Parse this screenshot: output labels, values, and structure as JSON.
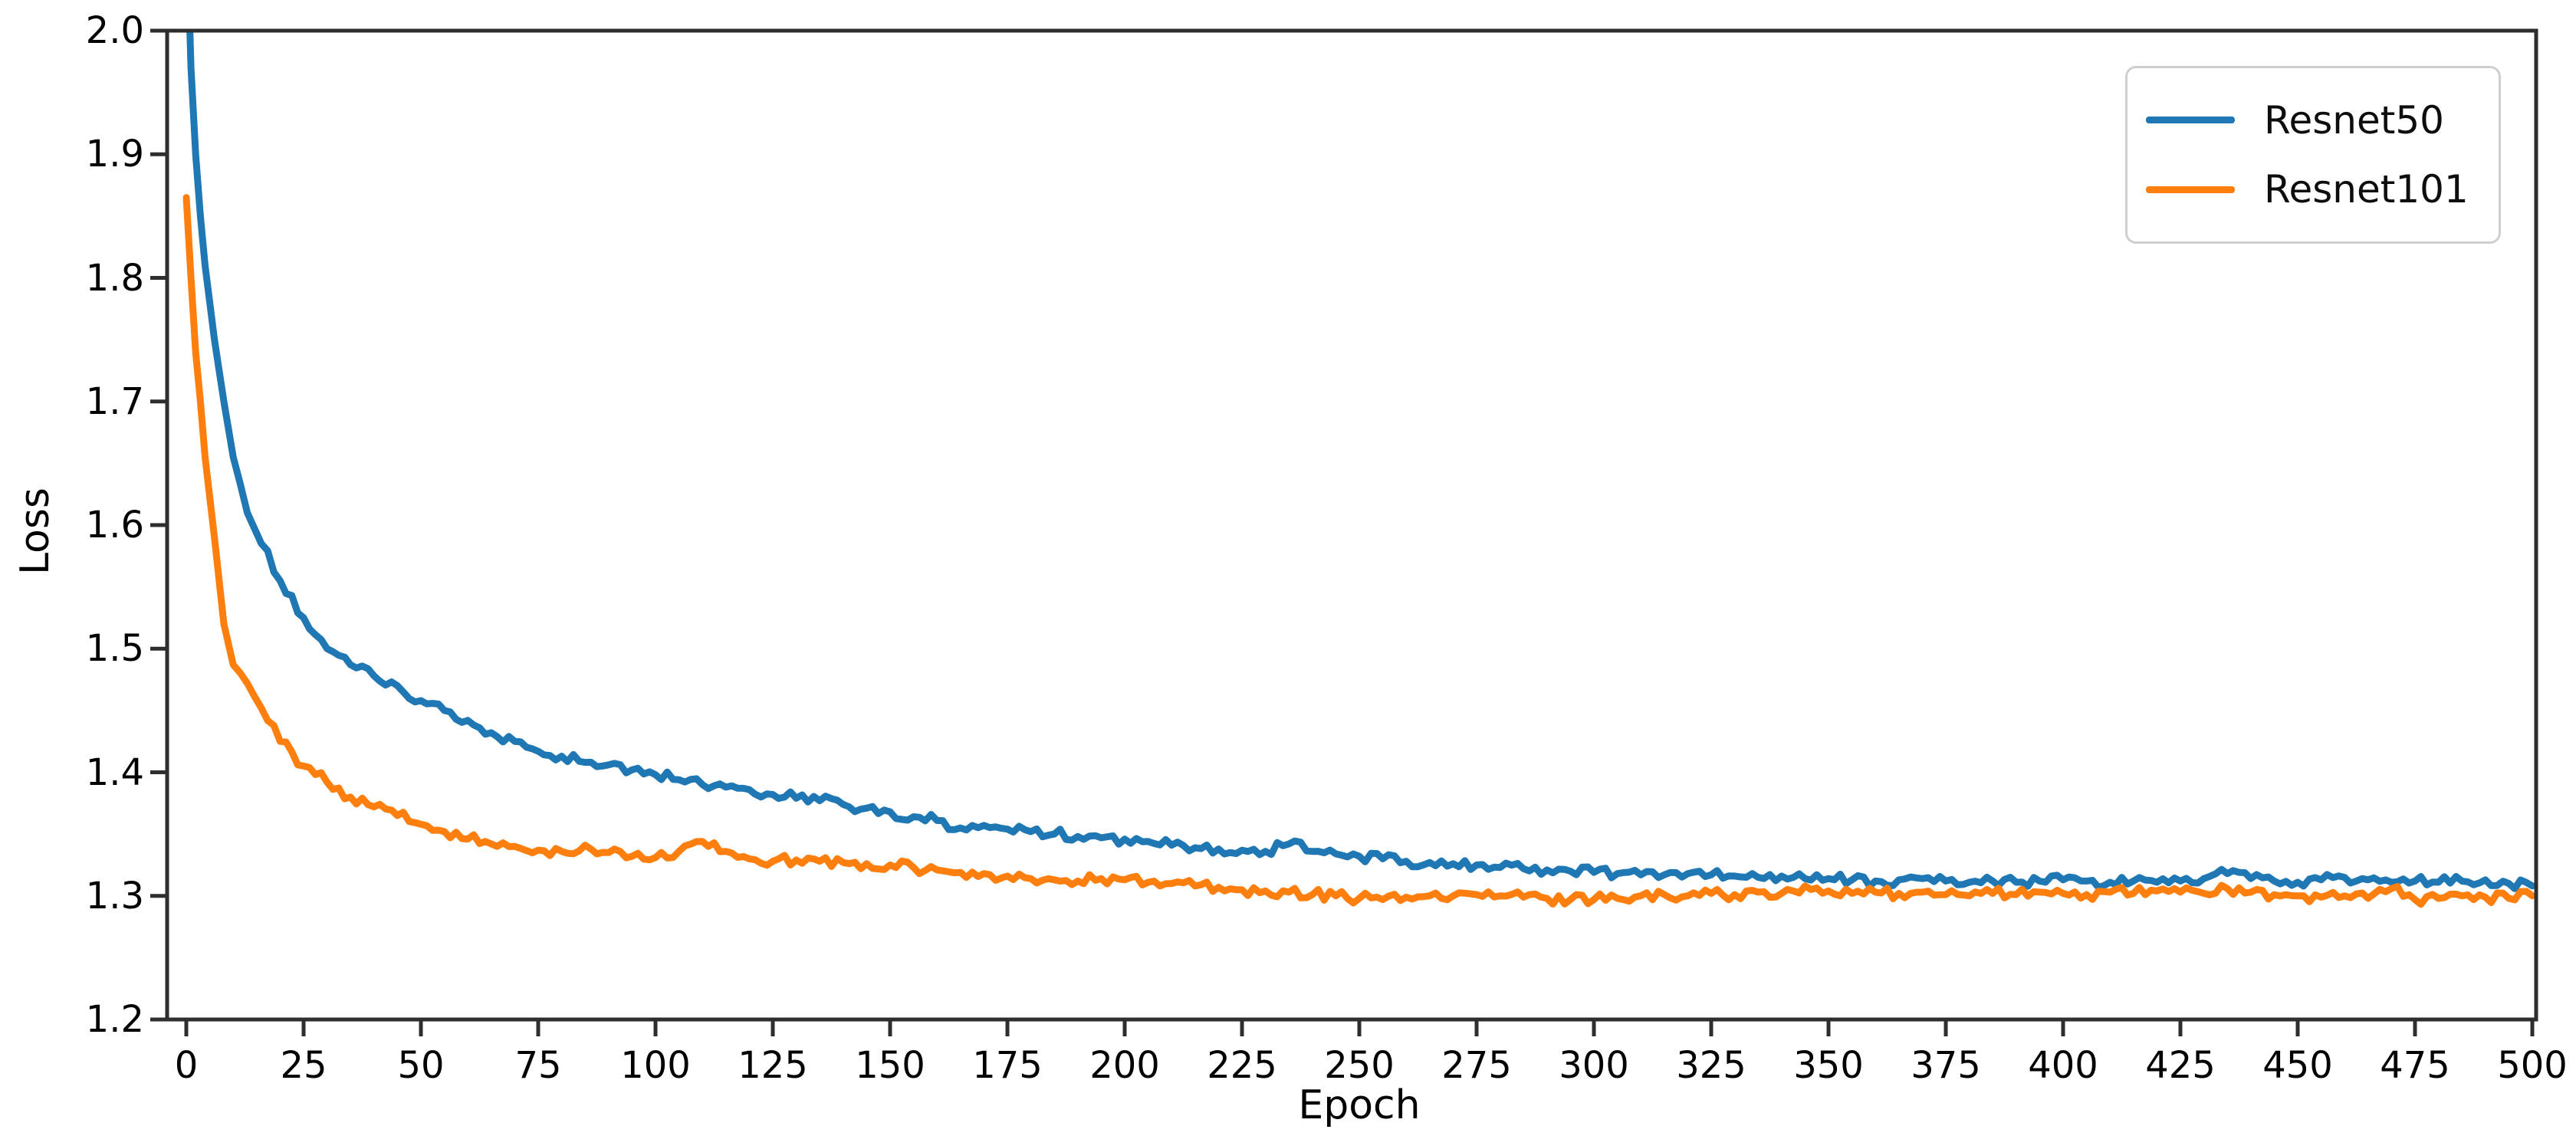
{
  "figure": {
    "background": "#ffffff",
    "frame_color": "#2e2e2e",
    "text_color": "#000000"
  },
  "chart_data": {
    "type": "line",
    "title": "",
    "xlabel": "Epoch",
    "ylabel": "Loss",
    "xlim": [
      -4,
      501
    ],
    "ylim": [
      1.2,
      2.0
    ],
    "xticks": [
      0,
      25,
      50,
      75,
      100,
      125,
      150,
      175,
      200,
      225,
      250,
      275,
      300,
      325,
      350,
      375,
      400,
      425,
      450,
      475,
      500
    ],
    "yticks": [
      1.2,
      1.3,
      1.4,
      1.5,
      1.6,
      1.7,
      1.8,
      1.9,
      2.0
    ],
    "grid": false,
    "legend_position": "upper right",
    "x": [
      0,
      1,
      2,
      3,
      4,
      6,
      8,
      10,
      13,
      16,
      20,
      25,
      30,
      35,
      40,
      45,
      50,
      55,
      60,
      65,
      70,
      75,
      80,
      85,
      90,
      95,
      100,
      105,
      110,
      115,
      120,
      125,
      130,
      135,
      140,
      145,
      150,
      155,
      160,
      165,
      170,
      175,
      180,
      185,
      190,
      195,
      200,
      205,
      210,
      215,
      220,
      225,
      230,
      235,
      240,
      245,
      250,
      255,
      260,
      265,
      270,
      275,
      280,
      285,
      290,
      295,
      300,
      305,
      310,
      315,
      320,
      325,
      330,
      335,
      340,
      345,
      350,
      355,
      360,
      365,
      370,
      375,
      380,
      385,
      390,
      395,
      400,
      405,
      410,
      415,
      420,
      425,
      430,
      435,
      440,
      445,
      450,
      455,
      460,
      465,
      470,
      475,
      480,
      485,
      490,
      495,
      500
    ],
    "series": [
      {
        "name": "Resnet50",
        "color": "#1f77b4",
        "values": [
          2.1,
          1.97,
          1.9,
          1.85,
          1.81,
          1.75,
          1.7,
          1.655,
          1.61,
          1.585,
          1.555,
          1.525,
          1.5,
          1.487,
          1.478,
          1.47,
          1.458,
          1.45,
          1.442,
          1.432,
          1.425,
          1.417,
          1.413,
          1.408,
          1.406,
          1.402,
          1.398,
          1.394,
          1.39,
          1.388,
          1.386,
          1.382,
          1.379,
          1.377,
          1.374,
          1.371,
          1.368,
          1.364,
          1.361,
          1.355,
          1.357,
          1.354,
          1.352,
          1.35,
          1.348,
          1.347,
          1.346,
          1.344,
          1.341,
          1.339,
          1.338,
          1.337,
          1.336,
          1.342,
          1.336,
          1.334,
          1.332,
          1.33,
          1.328,
          1.327,
          1.326,
          1.325,
          1.323,
          1.322,
          1.321,
          1.32,
          1.319,
          1.318,
          1.317,
          1.317,
          1.318,
          1.317,
          1.316,
          1.315,
          1.316,
          1.314,
          1.314,
          1.313,
          1.312,
          1.313,
          1.314,
          1.312,
          1.311,
          1.312,
          1.311,
          1.312,
          1.313,
          1.312,
          1.311,
          1.312,
          1.311,
          1.312,
          1.314,
          1.318,
          1.314,
          1.312,
          1.311,
          1.313,
          1.315,
          1.313,
          1.311,
          1.312,
          1.311,
          1.312,
          1.313,
          1.31,
          1.308
        ]
      },
      {
        "name": "Resnet101",
        "color": "#ff7f0e",
        "values": [
          1.865,
          1.8,
          1.74,
          1.7,
          1.655,
          1.59,
          1.52,
          1.487,
          1.472,
          1.452,
          1.425,
          1.405,
          1.392,
          1.38,
          1.372,
          1.365,
          1.358,
          1.352,
          1.346,
          1.342,
          1.34,
          1.337,
          1.336,
          1.341,
          1.335,
          1.332,
          1.331,
          1.336,
          1.344,
          1.336,
          1.33,
          1.328,
          1.329,
          1.328,
          1.327,
          1.326,
          1.325,
          1.323,
          1.321,
          1.319,
          1.318,
          1.316,
          1.314,
          1.313,
          1.312,
          1.314,
          1.313,
          1.311,
          1.31,
          1.308,
          1.307,
          1.305,
          1.304,
          1.303,
          1.301,
          1.3,
          1.298,
          1.297,
          1.299,
          1.3,
          1.3,
          1.301,
          1.3,
          1.299,
          1.298,
          1.297,
          1.297,
          1.298,
          1.3,
          1.301,
          1.3,
          1.302,
          1.301,
          1.303,
          1.302,
          1.308,
          1.304,
          1.302,
          1.303,
          1.302,
          1.303,
          1.301,
          1.3,
          1.302,
          1.301,
          1.303,
          1.302,
          1.301,
          1.303,
          1.302,
          1.304,
          1.303,
          1.302,
          1.306,
          1.303,
          1.301,
          1.3,
          1.299,
          1.3,
          1.298,
          1.306,
          1.297,
          1.298,
          1.3,
          1.299,
          1.298,
          1.3
        ]
      }
    ]
  }
}
